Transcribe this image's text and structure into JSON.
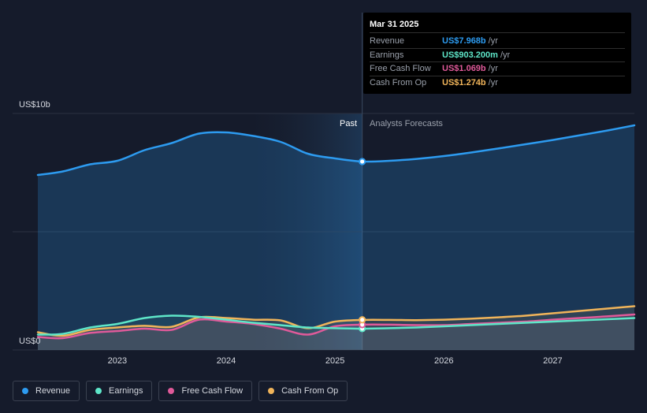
{
  "tooltip": {
    "date": "Mar 31 2025",
    "rows": [
      {
        "name": "Revenue",
        "value": "US$7.968b",
        "unit": "/yr",
        "color": "#2d9bf0"
      },
      {
        "name": "Earnings",
        "value": "US$903.200m",
        "unit": "/yr",
        "color": "#5ee6c8"
      },
      {
        "name": "Free Cash Flow",
        "value": "US$1.069b",
        "unit": "/yr",
        "color": "#e05a9a"
      },
      {
        "name": "Cash From Op",
        "value": "US$1.274b",
        "unit": "/yr",
        "color": "#f0b45a"
      }
    ]
  },
  "legend": [
    {
      "name": "Revenue",
      "color": "#2d9bf0"
    },
    {
      "name": "Earnings",
      "color": "#5ee6c8"
    },
    {
      "name": "Free Cash Flow",
      "color": "#e05a9a"
    },
    {
      "name": "Cash From Op",
      "color": "#f0b45a"
    }
  ],
  "chart_data": {
    "type": "line",
    "ylabel_top": "US$10b",
    "ylabel_bottom": "US$0",
    "ylim": [
      0,
      10
    ],
    "xlim": [
      2022.27,
      2027.75
    ],
    "x_ticks": [
      2023,
      2024,
      2025,
      2026,
      2027
    ],
    "x_tick_labels": [
      "2023",
      "2024",
      "2025",
      "2026",
      "2027"
    ],
    "past_label": "Past",
    "forecast_label": "Analysts Forecasts",
    "divider_x": 2025.25,
    "highlight_start_x": 2024.24,
    "grid": true,
    "series": [
      {
        "name": "Revenue",
        "color": "#2d9bf0",
        "x": [
          2022.27,
          2022.5,
          2022.75,
          2023.0,
          2023.25,
          2023.5,
          2023.75,
          2024.0,
          2024.25,
          2024.5,
          2024.75,
          2025.0,
          2025.25,
          2025.5,
          2025.75,
          2026.0,
          2026.25,
          2026.5,
          2026.75,
          2027.0,
          2027.25,
          2027.5,
          2027.75
        ],
        "y": [
          7.4,
          7.55,
          7.85,
          8.0,
          8.45,
          8.75,
          9.15,
          9.2,
          9.05,
          8.8,
          8.3,
          8.1,
          7.97,
          8.0,
          8.08,
          8.2,
          8.35,
          8.52,
          8.7,
          8.88,
          9.08,
          9.28,
          9.5
        ]
      },
      {
        "name": "Earnings",
        "color": "#5ee6c8",
        "x": [
          2022.27,
          2022.5,
          2022.75,
          2023.0,
          2023.25,
          2023.5,
          2023.75,
          2024.0,
          2024.25,
          2024.5,
          2024.75,
          2025.0,
          2025.25,
          2025.5,
          2025.75,
          2026.0,
          2026.25,
          2026.5,
          2026.75,
          2027.0,
          2027.25,
          2027.5,
          2027.75
        ],
        "y": [
          0.65,
          0.68,
          0.95,
          1.1,
          1.35,
          1.45,
          1.4,
          1.28,
          1.15,
          1.05,
          0.95,
          0.92,
          0.9,
          0.92,
          0.95,
          1.0,
          1.05,
          1.1,
          1.15,
          1.2,
          1.25,
          1.3,
          1.35
        ]
      },
      {
        "name": "Free Cash Flow",
        "color": "#e05a9a",
        "x": [
          2022.27,
          2022.5,
          2022.75,
          2023.0,
          2023.25,
          2023.5,
          2023.75,
          2024.0,
          2024.25,
          2024.5,
          2024.75,
          2025.0,
          2025.25,
          2025.5,
          2025.75,
          2026.0,
          2026.25,
          2026.5,
          2026.75,
          2027.0,
          2027.25,
          2027.5,
          2027.75
        ],
        "y": [
          0.55,
          0.5,
          0.72,
          0.8,
          0.9,
          0.85,
          1.28,
          1.2,
          1.1,
          0.9,
          0.65,
          1.0,
          1.07,
          1.07,
          1.05,
          1.05,
          1.1,
          1.15,
          1.2,
          1.28,
          1.35,
          1.42,
          1.5
        ]
      },
      {
        "name": "Cash From Op",
        "color": "#f0b45a",
        "x": [
          2022.27,
          2022.5,
          2022.75,
          2023.0,
          2023.25,
          2023.5,
          2023.75,
          2024.0,
          2024.25,
          2024.5,
          2024.75,
          2025.0,
          2025.25,
          2025.5,
          2025.75,
          2026.0,
          2026.25,
          2026.5,
          2026.75,
          2027.0,
          2027.25,
          2027.5,
          2027.75
        ],
        "y": [
          0.75,
          0.6,
          0.85,
          0.95,
          1.02,
          0.98,
          1.38,
          1.35,
          1.28,
          1.25,
          0.92,
          1.2,
          1.27,
          1.27,
          1.26,
          1.28,
          1.32,
          1.38,
          1.45,
          1.55,
          1.65,
          1.75,
          1.85
        ]
      }
    ],
    "highlight_points": [
      {
        "series": "Revenue",
        "x": 2025.25,
        "y": 7.968
      },
      {
        "series": "Earnings",
        "x": 2025.25,
        "y": 0.9032
      },
      {
        "series": "Free Cash Flow",
        "x": 2025.25,
        "y": 1.069
      },
      {
        "series": "Cash From Op",
        "x": 2025.25,
        "y": 1.274
      }
    ]
  }
}
